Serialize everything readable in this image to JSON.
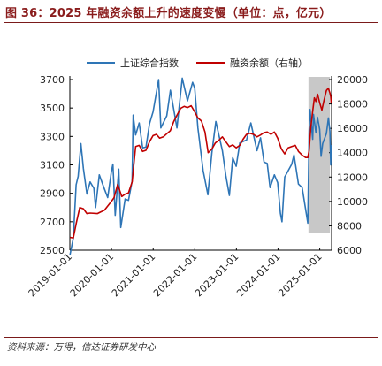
{
  "title": "图 36：2025 年融资余额上升的速度变慢（单位：点，亿元）",
  "source": "资料来源：万得，信达证券研发中心",
  "colors": {
    "title": "#8a1c1c",
    "series_index": "#2e75b6",
    "series_margin": "#c00000",
    "highlight": "#c8c8c8"
  },
  "chart_data": {
    "type": "line",
    "xlim": [
      "2019-01-01",
      "2025-04-15"
    ],
    "x_ticks": [
      "2019-01-01",
      "2020-01-01",
      "2021-01-01",
      "2022-01-01",
      "2023-01-01",
      "2024-01-01",
      "2025-01-01"
    ],
    "left_axis": {
      "ylim": [
        2500,
        3700
      ],
      "ticks": [
        2500,
        2700,
        2900,
        3100,
        3300,
        3500,
        3700
      ]
    },
    "right_axis": {
      "ylim": [
        6000,
        20000
      ],
      "ticks": [
        6000,
        8000,
        10000,
        12000,
        14000,
        16000,
        18000,
        20000
      ]
    },
    "highlight_range": [
      "2024-09-24",
      "2025-03-31"
    ],
    "legend_position": "top-center",
    "series": [
      {
        "name": "上证综合指数",
        "axis": "left",
        "points": [
          [
            "2019-01-02",
            2465
          ],
          [
            "2019-01-31",
            2585
          ],
          [
            "2019-02-25",
            2960
          ],
          [
            "2019-03-15",
            3020
          ],
          [
            "2019-04-08",
            3250
          ],
          [
            "2019-04-30",
            3075
          ],
          [
            "2019-05-31",
            2895
          ],
          [
            "2019-06-28",
            2980
          ],
          [
            "2019-07-31",
            2935
          ],
          [
            "2019-08-15",
            2800
          ],
          [
            "2019-09-16",
            3030
          ],
          [
            "2019-10-31",
            2930
          ],
          [
            "2019-11-29",
            2870
          ],
          [
            "2019-12-31",
            3050
          ],
          [
            "2020-01-14",
            3105
          ],
          [
            "2020-02-03",
            2745
          ],
          [
            "2020-03-05",
            3070
          ],
          [
            "2020-03-23",
            2660
          ],
          [
            "2020-04-30",
            2860
          ],
          [
            "2020-05-29",
            2850
          ],
          [
            "2020-06-30",
            2985
          ],
          [
            "2020-07-09",
            3450
          ],
          [
            "2020-07-31",
            3310
          ],
          [
            "2020-08-31",
            3395
          ],
          [
            "2020-09-30",
            3220
          ],
          [
            "2020-10-30",
            3225
          ],
          [
            "2020-11-30",
            3390
          ],
          [
            "2020-12-31",
            3473
          ],
          [
            "2021-02-18",
            3700
          ],
          [
            "2021-03-09",
            3360
          ],
          [
            "2021-04-30",
            3445
          ],
          [
            "2021-06-01",
            3625
          ],
          [
            "2021-07-28",
            3360
          ],
          [
            "2021-09-13",
            3710
          ],
          [
            "2021-10-29",
            3550
          ],
          [
            "2021-12-13",
            3680
          ],
          [
            "2021-12-31",
            3640
          ],
          [
            "2022-01-28",
            3360
          ],
          [
            "2022-03-15",
            3060
          ],
          [
            "2022-04-26",
            2890
          ],
          [
            "2022-05-31",
            3185
          ],
          [
            "2022-07-05",
            3405
          ],
          [
            "2022-08-31",
            3200
          ],
          [
            "2022-09-30",
            3025
          ],
          [
            "2022-10-31",
            2885
          ],
          [
            "2022-11-30",
            3150
          ],
          [
            "2022-12-30",
            3090
          ],
          [
            "2023-01-31",
            3255
          ],
          [
            "2023-03-31",
            3275
          ],
          [
            "2023-05-08",
            3395
          ],
          [
            "2023-06-30",
            3200
          ],
          [
            "2023-07-31",
            3290
          ],
          [
            "2023-08-31",
            3120
          ],
          [
            "2023-09-28",
            3110
          ],
          [
            "2023-10-23",
            2940
          ],
          [
            "2023-11-30",
            3030
          ],
          [
            "2023-12-29",
            2975
          ],
          [
            "2024-01-22",
            2760
          ],
          [
            "2024-02-05",
            2700
          ],
          [
            "2024-02-29",
            3015
          ],
          [
            "2024-04-30",
            3105
          ],
          [
            "2024-05-20",
            3170
          ],
          [
            "2024-06-28",
            2965
          ],
          [
            "2024-07-31",
            2940
          ],
          [
            "2024-09-18",
            2690
          ],
          [
            "2024-09-30",
            3335
          ],
          [
            "2024-10-08",
            3490
          ],
          [
            "2024-10-31",
            3280
          ],
          [
            "2024-11-07",
            3455
          ],
          [
            "2024-11-29",
            3325
          ],
          [
            "2024-12-12",
            3435
          ],
          [
            "2024-12-31",
            3350
          ],
          [
            "2025-01-13",
            3160
          ],
          [
            "2025-01-27",
            3250
          ],
          [
            "2025-02-28",
            3320
          ],
          [
            "2025-03-18",
            3430
          ],
          [
            "2025-03-31",
            3335
          ],
          [
            "2025-04-07",
            3100
          ],
          [
            "2025-04-11",
            3240
          ]
        ]
      },
      {
        "name": "融资余额（右轴）",
        "axis": "right",
        "points": [
          [
            "2019-01-02",
            7050
          ],
          [
            "2019-01-31",
            7000
          ],
          [
            "2019-02-28",
            8300
          ],
          [
            "2019-03-29",
            9500
          ],
          [
            "2019-04-30",
            9400
          ],
          [
            "2019-05-31",
            9000
          ],
          [
            "2019-06-28",
            9050
          ],
          [
            "2019-08-30",
            9000
          ],
          [
            "2019-09-30",
            9150
          ],
          [
            "2019-10-31",
            9280
          ],
          [
            "2019-12-31",
            10000
          ],
          [
            "2020-01-23",
            10300
          ],
          [
            "2020-02-25",
            11400
          ],
          [
            "2020-03-31",
            10400
          ],
          [
            "2020-04-30",
            10600
          ],
          [
            "2020-05-29",
            10700
          ],
          [
            "2020-06-30",
            11600
          ],
          [
            "2020-07-31",
            14500
          ],
          [
            "2020-08-31",
            14600
          ],
          [
            "2020-09-30",
            14100
          ],
          [
            "2020-10-30",
            14200
          ],
          [
            "2020-11-30",
            14900
          ],
          [
            "2020-12-31",
            15400
          ],
          [
            "2021-01-29",
            15500
          ],
          [
            "2021-02-26",
            15200
          ],
          [
            "2021-03-31",
            15300
          ],
          [
            "2021-04-30",
            15550
          ],
          [
            "2021-05-31",
            15800
          ],
          [
            "2021-06-30",
            16550
          ],
          [
            "2021-07-30",
            17100
          ],
          [
            "2021-08-31",
            17650
          ],
          [
            "2021-09-30",
            17800
          ],
          [
            "2021-10-29",
            17700
          ],
          [
            "2021-11-30",
            17850
          ],
          [
            "2021-12-31",
            17350
          ],
          [
            "2022-01-28",
            16850
          ],
          [
            "2022-02-28",
            16600
          ],
          [
            "2022-03-31",
            15700
          ],
          [
            "2022-04-28",
            14000
          ],
          [
            "2022-05-31",
            14300
          ],
          [
            "2022-06-30",
            14800
          ],
          [
            "2022-07-29",
            15000
          ],
          [
            "2022-08-31",
            15300
          ],
          [
            "2022-09-30",
            14900
          ],
          [
            "2022-10-31",
            14500
          ],
          [
            "2022-11-30",
            14650
          ],
          [
            "2022-12-30",
            14400
          ],
          [
            "2023-01-31",
            14600
          ],
          [
            "2023-02-28",
            15100
          ],
          [
            "2023-03-31",
            15500
          ],
          [
            "2023-04-28",
            15600
          ],
          [
            "2023-05-31",
            15500
          ],
          [
            "2023-06-30",
            15300
          ],
          [
            "2023-07-31",
            15450
          ],
          [
            "2023-08-31",
            15650
          ],
          [
            "2023-09-28",
            15700
          ],
          [
            "2023-10-31",
            15500
          ],
          [
            "2023-11-30",
            15700
          ],
          [
            "2023-12-29",
            15200
          ],
          [
            "2024-01-31",
            14300
          ],
          [
            "2024-02-29",
            13900
          ],
          [
            "2024-03-29",
            14400
          ],
          [
            "2024-04-30",
            14500
          ],
          [
            "2024-05-31",
            14600
          ],
          [
            "2024-06-28",
            14100
          ],
          [
            "2024-07-31",
            13800
          ],
          [
            "2024-08-30",
            13600
          ],
          [
            "2024-09-18",
            13600
          ],
          [
            "2024-09-30",
            14200
          ],
          [
            "2024-10-15",
            16100
          ],
          [
            "2024-10-31",
            17400
          ],
          [
            "2024-11-15",
            18500
          ],
          [
            "2024-11-29",
            18200
          ],
          [
            "2024-12-13",
            18800
          ],
          [
            "2024-12-31",
            18100
          ],
          [
            "2025-01-20",
            17500
          ],
          [
            "2025-02-07",
            18300
          ],
          [
            "2025-02-28",
            19100
          ],
          [
            "2025-03-17",
            19300
          ],
          [
            "2025-03-31",
            18900
          ],
          [
            "2025-04-07",
            18600
          ],
          [
            "2025-04-11",
            18100
          ]
        ]
      }
    ]
  }
}
